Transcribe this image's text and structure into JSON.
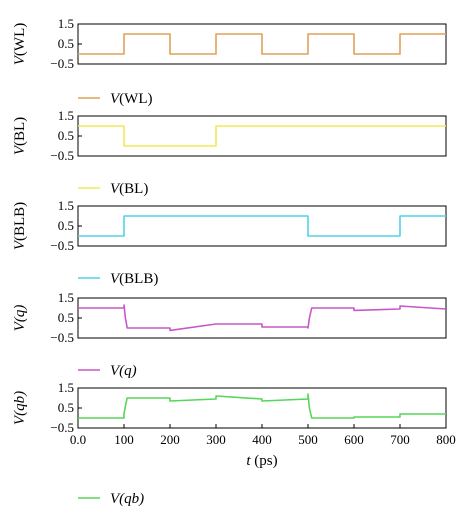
{
  "chart_data": [
    {
      "type": "line",
      "ylabel_italic": "V",
      "ylabel_rest": "(WL)",
      "legend": {
        "italic": "V",
        "rest": "(WL)"
      },
      "color": "#e0a15a",
      "yticks": [
        "1.5",
        "0.5",
        "−0.5"
      ],
      "ylim": [
        -0.5,
        1.5
      ],
      "xlim": [
        0,
        800
      ],
      "x": [
        0,
        100,
        100,
        200,
        200,
        300,
        300,
        400,
        400,
        500,
        500,
        600,
        600,
        700,
        700,
        800
      ],
      "y": [
        0,
        0,
        1,
        1,
        0,
        0,
        1,
        1,
        0,
        0,
        1,
        1,
        0,
        0,
        1,
        1
      ]
    },
    {
      "type": "line",
      "ylabel_italic": "V",
      "ylabel_rest": "(BL)",
      "legend": {
        "italic": "V",
        "rest": "(BL)"
      },
      "color": "#f2ea57",
      "yticks": [
        "1.5",
        "0.5",
        "−0.5"
      ],
      "ylim": [
        -0.5,
        1.5
      ],
      "xlim": [
        0,
        800
      ],
      "x": [
        0,
        100,
        100,
        300,
        300,
        800
      ],
      "y": [
        1,
        1,
        0,
        0,
        1,
        1
      ]
    },
    {
      "type": "line",
      "ylabel_italic": "V",
      "ylabel_rest": "(BLB)",
      "legend": {
        "italic": "V",
        "rest": "(BLB)"
      },
      "color": "#52d2ea",
      "yticks": [
        "1.5",
        "0.5",
        "−0.5"
      ],
      "ylim": [
        -0.5,
        1.5
      ],
      "xlim": [
        0,
        800
      ],
      "x": [
        0,
        100,
        100,
        500,
        500,
        700,
        700,
        800
      ],
      "y": [
        0,
        0,
        1,
        1,
        0,
        0,
        1,
        1
      ]
    },
    {
      "type": "line",
      "ylabel_italic": "V",
      "ylabel_rest": "(q)",
      "ylabel_rest_italic": true,
      "legend": {
        "italic": "V",
        "rest": "(q)",
        "rest_italic": true
      },
      "color": "#c758c9",
      "yticks": [
        "1.5",
        "0.5",
        "−0.5"
      ],
      "ylim": [
        -0.5,
        1.5
      ],
      "xlim": [
        0,
        800
      ],
      "x": [
        0,
        100,
        100,
        103,
        107,
        200,
        200,
        300,
        300,
        400,
        400,
        500,
        500,
        503,
        508,
        600,
        600,
        700,
        700,
        800
      ],
      "y": [
        1.0,
        1.0,
        1.15,
        0.5,
        0.0,
        0.0,
        -0.12,
        0.2,
        0.2,
        0.2,
        0.05,
        0.05,
        0.0,
        0.5,
        1.0,
        1.0,
        0.88,
        0.95,
        1.1,
        0.95
      ]
    },
    {
      "type": "line",
      "ylabel_italic": "V",
      "ylabel_rest": "(qb)",
      "ylabel_rest_italic": true,
      "legend": {
        "italic": "V",
        "rest": "(qb)",
        "rest_italic": true
      },
      "color": "#56d65a",
      "yticks": [
        "1.5",
        "0.5",
        "−0.5"
      ],
      "ylim": [
        -0.5,
        1.5
      ],
      "xlim": [
        0,
        800
      ],
      "x": [
        0,
        100,
        100,
        103,
        107,
        200,
        200,
        300,
        300,
        400,
        400,
        500,
        500,
        503,
        508,
        600,
        600,
        700,
        700,
        800
      ],
      "y": [
        0.0,
        0.0,
        0.2,
        0.6,
        1.0,
        1.0,
        0.85,
        0.95,
        1.1,
        0.95,
        0.85,
        0.95,
        1.2,
        0.5,
        0.0,
        0.0,
        0.05,
        0.05,
        0.2,
        0.2
      ]
    }
  ],
  "xaxis": {
    "ticks": [
      "0.0",
      "100",
      "200",
      "300",
      "400",
      "500",
      "600",
      "700",
      "800"
    ],
    "label_italic": "t",
    "label_rest": " (ps)"
  }
}
